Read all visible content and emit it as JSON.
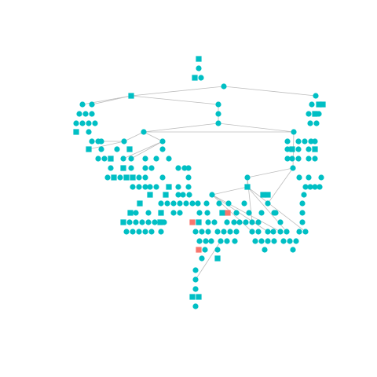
{
  "diagram": {
    "kind": "tree-graph",
    "colors": {
      "node_primary": "#00BFC4",
      "node_highlight": "#F8766D",
      "edge": "#BDBDBD",
      "background": "#FFFFFF"
    },
    "node_shapes": [
      "circle",
      "square"
    ]
  }
}
